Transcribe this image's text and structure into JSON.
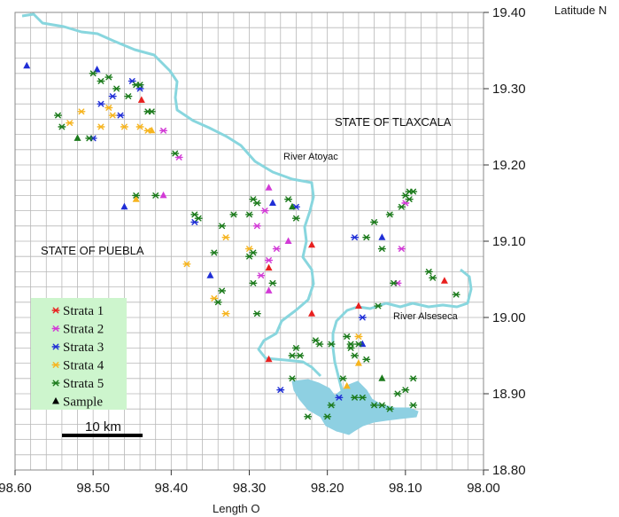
{
  "axes": {
    "x_label": "Length O",
    "y_label": "Latitude N",
    "x_ticks": [
      "98.60",
      "98.50",
      "98.40",
      "98.30",
      "98.20",
      "98.10",
      "98.00"
    ],
    "y_ticks": [
      "19.40",
      "19.30",
      "19.20",
      "19.10",
      "19.00",
      "18.90",
      "18.80"
    ]
  },
  "labels": {
    "tlaxcala": "STATE OF TLAXCALA",
    "puebla": "STATE OF PUEBLA",
    "atoyac": "River Atoyac",
    "alseseca": "River Alseseca"
  },
  "scale_bar": "10 km",
  "legend": {
    "items": [
      {
        "label": "Strata 1",
        "color": "#e8201f",
        "marker": "asterisk"
      },
      {
        "label": "Strata 2",
        "color": "#d23ad6",
        "marker": "asterisk"
      },
      {
        "label": "Strata 3",
        "color": "#1f2ed6",
        "marker": "asterisk"
      },
      {
        "label": "Strata 4",
        "color": "#f6b41e",
        "marker": "asterisk"
      },
      {
        "label": "Strata 5",
        "color": "#1b7a1b",
        "marker": "asterisk"
      },
      {
        "label": "Sample",
        "color": "#000000",
        "marker": "triangle"
      }
    ]
  },
  "colors": {
    "river": "#88d6de",
    "reservoir": "#8ed0e2",
    "grid": "#b8b8b8"
  },
  "points": {
    "1": {
      "color": "#e8201f",
      "stars": [],
      "tri": [
        [
          98.438,
          19.285
        ],
        [
          98.275,
          19.065
        ],
        [
          98.22,
          19.095
        ],
        [
          98.22,
          19.005
        ],
        [
          98.16,
          19.015
        ],
        [
          98.275,
          18.945
        ],
        [
          98.05,
          19.048
        ]
      ]
    },
    "2": {
      "color": "#d23ad6",
      "stars": [
        [
          98.41,
          19.245
        ],
        [
          98.39,
          19.21
        ],
        [
          98.28,
          19.14
        ],
        [
          98.265,
          19.09
        ],
        [
          98.29,
          19.12
        ],
        [
          98.275,
          19.075
        ],
        [
          98.285,
          19.055
        ],
        [
          98.105,
          19.09
        ],
        [
          98.11,
          19.045
        ],
        [
          98.1,
          19.15
        ]
      ],
      "tri": [
        [
          98.41,
          19.16
        ],
        [
          98.275,
          19.17
        ],
        [
          98.25,
          19.1
        ],
        [
          98.275,
          19.035
        ]
      ]
    },
    "3": {
      "color": "#1f2ed6",
      "stars": [
        [
          98.475,
          19.29
        ],
        [
          98.465,
          19.265
        ],
        [
          98.45,
          19.31
        ],
        [
          98.49,
          19.28
        ],
        [
          98.5,
          19.235
        ],
        [
          98.44,
          19.3
        ],
        [
          98.37,
          19.125
        ],
        [
          98.24,
          19.145
        ],
        [
          98.165,
          19.105
        ],
        [
          98.155,
          19.0
        ],
        [
          98.26,
          18.905
        ],
        [
          98.185,
          18.895
        ]
      ],
      "tri": [
        [
          98.585,
          19.33
        ],
        [
          98.495,
          19.325
        ],
        [
          98.46,
          19.145
        ],
        [
          98.35,
          19.055
        ],
        [
          98.27,
          19.15
        ],
        [
          98.13,
          19.105
        ],
        [
          98.155,
          18.965
        ]
      ]
    },
    "4": {
      "color": "#f6b41e",
      "stars": [
        [
          98.53,
          19.255
        ],
        [
          98.515,
          19.27
        ],
        [
          98.49,
          19.25
        ],
        [
          98.48,
          19.275
        ],
        [
          98.475,
          19.265
        ],
        [
          98.46,
          19.25
        ],
        [
          98.44,
          19.25
        ],
        [
          98.43,
          19.245
        ],
        [
          98.38,
          19.07
        ],
        [
          98.345,
          19.025
        ],
        [
          98.33,
          19.005
        ],
        [
          98.33,
          19.105
        ],
        [
          98.3,
          19.09
        ],
        [
          98.16,
          18.975
        ]
      ],
      "tri": [
        [
          98.445,
          19.155
        ],
        [
          98.175,
          18.91
        ],
        [
          98.16,
          18.94
        ],
        [
          98.425,
          19.245
        ]
      ]
    },
    "5": {
      "color": "#1b7a1b",
      "stars": [
        [
          98.545,
          19.265
        ],
        [
          98.54,
          19.25
        ],
        [
          98.505,
          19.235
        ],
        [
          98.5,
          19.32
        ],
        [
          98.49,
          19.31
        ],
        [
          98.48,
          19.315
        ],
        [
          98.47,
          19.3
        ],
        [
          98.455,
          19.29
        ],
        [
          98.445,
          19.305
        ],
        [
          98.44,
          19.305
        ],
        [
          98.43,
          19.27
        ],
        [
          98.425,
          19.27
        ],
        [
          98.395,
          19.215
        ],
        [
          98.445,
          19.16
        ],
        [
          98.42,
          19.16
        ],
        [
          98.37,
          19.135
        ],
        [
          98.365,
          19.13
        ],
        [
          98.335,
          19.12
        ],
        [
          98.32,
          19.135
        ],
        [
          98.3,
          19.135
        ],
        [
          98.295,
          19.155
        ],
        [
          98.29,
          19.15
        ],
        [
          98.25,
          19.155
        ],
        [
          98.24,
          19.13
        ],
        [
          98.345,
          19.085
        ],
        [
          98.3,
          19.08
        ],
        [
          98.295,
          19.085
        ],
        [
          98.34,
          19.02
        ],
        [
          98.335,
          19.035
        ],
        [
          98.295,
          19.045
        ],
        [
          98.27,
          19.045
        ],
        [
          98.29,
          19.005
        ],
        [
          98.245,
          18.95
        ],
        [
          98.235,
          18.95
        ],
        [
          98.24,
          18.96
        ],
        [
          98.215,
          18.97
        ],
        [
          98.195,
          18.965
        ],
        [
          98.175,
          18.975
        ],
        [
          98.17,
          18.965
        ],
        [
          98.16,
          18.965
        ],
        [
          98.165,
          18.95
        ],
        [
          98.15,
          18.945
        ],
        [
          98.18,
          18.92
        ],
        [
          98.165,
          18.895
        ],
        [
          98.14,
          18.885
        ],
        [
          98.12,
          18.88
        ],
        [
          98.2,
          18.87
        ],
        [
          98.245,
          18.92
        ],
        [
          98.225,
          18.87
        ],
        [
          98.195,
          18.885
        ],
        [
          98.155,
          18.895
        ],
        [
          98.11,
          18.9
        ],
        [
          98.13,
          18.885
        ],
        [
          98.09,
          18.885
        ],
        [
          98.1,
          18.905
        ],
        [
          98.15,
          19.105
        ],
        [
          98.14,
          19.125
        ],
        [
          98.12,
          19.135
        ],
        [
          98.105,
          19.145
        ],
        [
          98.095,
          19.155
        ],
        [
          98.095,
          19.165
        ],
        [
          98.09,
          19.165
        ],
        [
          98.1,
          19.16
        ],
        [
          98.13,
          19.09
        ],
        [
          98.115,
          19.045
        ],
        [
          98.07,
          19.06
        ],
        [
          98.065,
          19.052
        ],
        [
          98.035,
          19.03
        ],
        [
          98.135,
          19.015
        ],
        [
          98.17,
          18.96
        ],
        [
          98.21,
          18.965
        ],
        [
          98.09,
          18.92
        ]
      ],
      "tri": [
        [
          98.52,
          19.235
        ],
        [
          98.245,
          19.145
        ],
        [
          98.13,
          18.92
        ]
      ]
    }
  }
}
